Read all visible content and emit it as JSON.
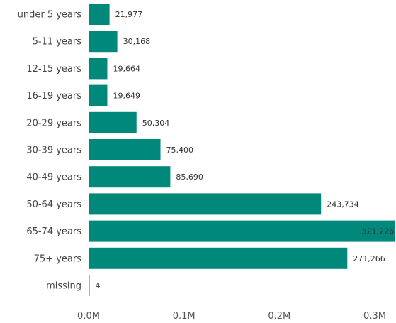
{
  "chart_data": {
    "type": "bar",
    "orientation": "horizontal",
    "categories": [
      "under 5 years",
      "5-11 years",
      "12-15 years",
      "16-19 years",
      "20-29 years",
      "30-39 years",
      "40-49 years",
      "50-64 years",
      "65-74 years",
      "75+ years",
      "missing"
    ],
    "values": [
      21977,
      30168,
      19664,
      19649,
      50304,
      75400,
      85690,
      243734,
      321226,
      271266,
      4
    ],
    "value_labels": [
      "21,977",
      "30,168",
      "19,664",
      "19,649",
      "50,304",
      "75,400",
      "85,690",
      "243,734",
      "321,226",
      "271,266",
      "4"
    ],
    "xticks": [
      0,
      100000,
      200000,
      300000
    ],
    "xtick_labels": [
      "0.0M",
      "0.1M",
      "0.2M",
      "0.3M"
    ],
    "xlim": [
      0,
      300000
    ],
    "title": "",
    "xlabel": "",
    "ylabel": "",
    "grid": false,
    "legend": "none",
    "bar_color": "#00897B"
  }
}
